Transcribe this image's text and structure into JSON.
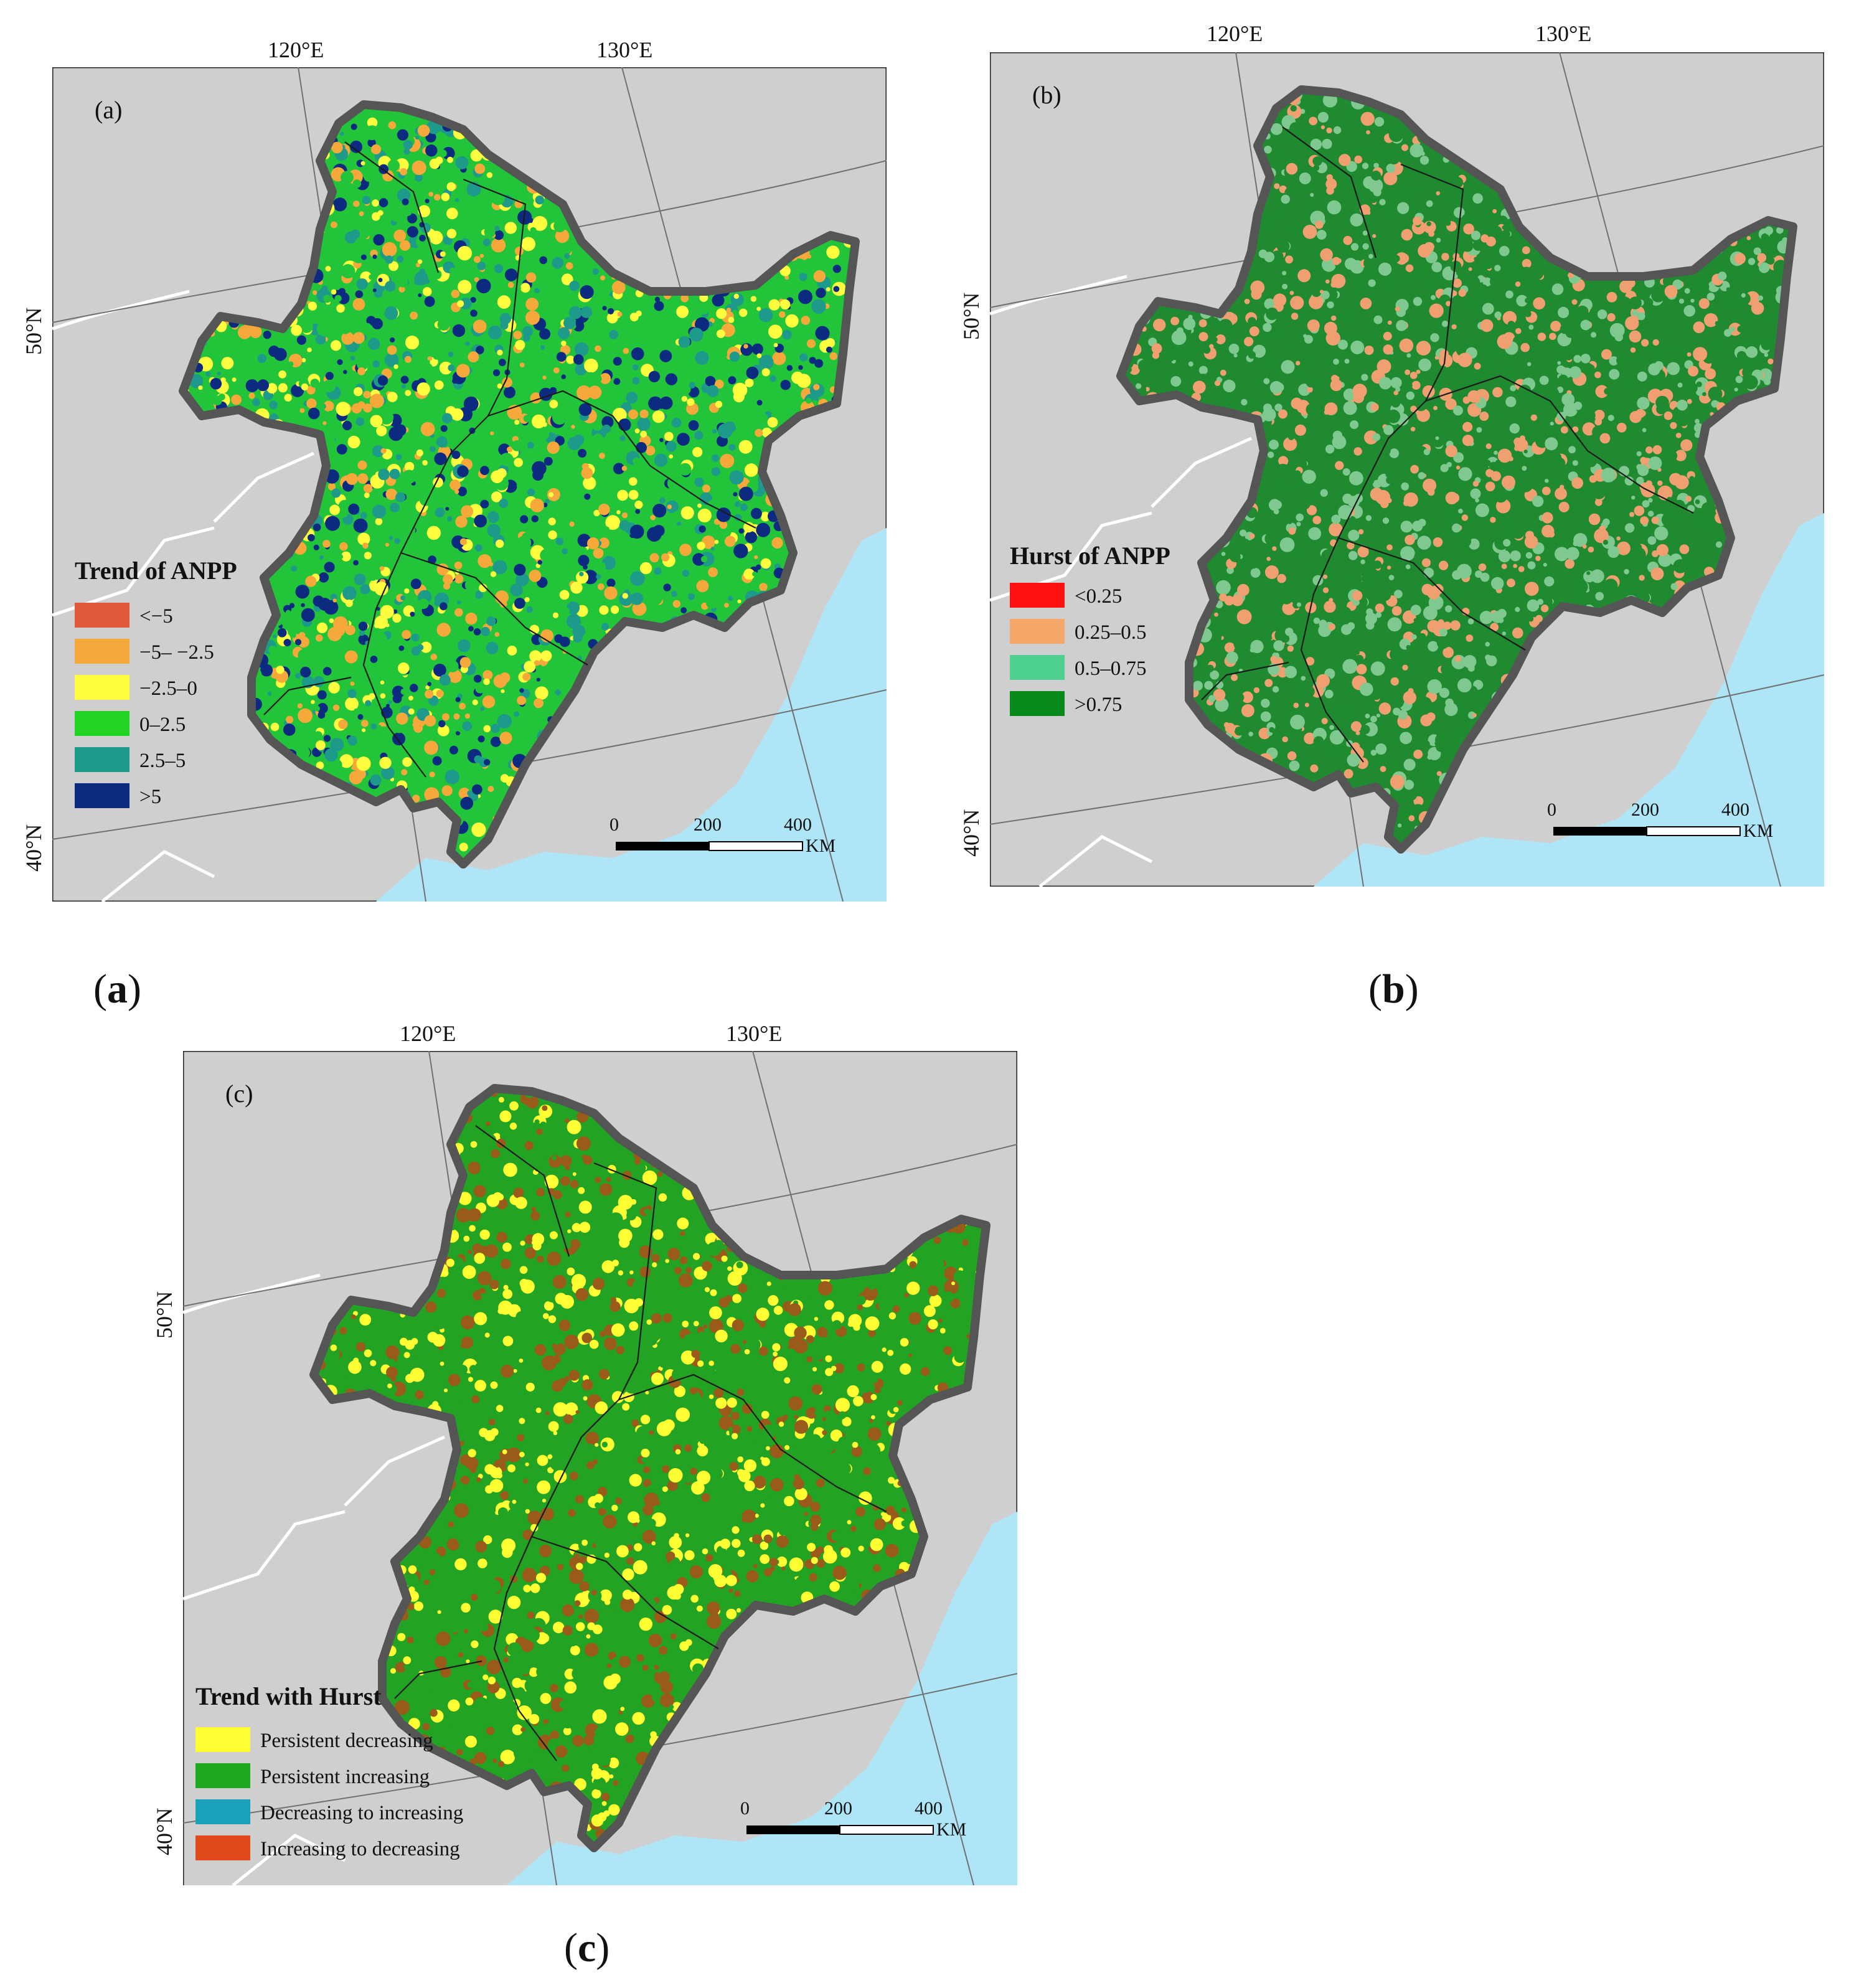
{
  "coordinates": {
    "lon_120": "120°E",
    "lon_130": "130°E",
    "lat_50": "50°N",
    "lat_40": "40°N"
  },
  "scale_bar": {
    "tick_0": "0",
    "tick_200": "200",
    "tick_400": "400",
    "unit": "KM"
  },
  "panels": [
    {
      "id": "a",
      "tag": "(a)",
      "caption_open": "(",
      "caption_letter": "a",
      "caption_close": ")",
      "legend_title": "Trend of ANPP",
      "legend": [
        {
          "label": "<−5",
          "color": "#e05a3a"
        },
        {
          "label": "−5– −2.5",
          "color": "#f6a83a"
        },
        {
          "label": "−2.5–0",
          "color": "#ffff40"
        },
        {
          "label": "0–2.5",
          "color": "#22d422"
        },
        {
          "label": "2.5–5",
          "color": "#1e9a8a"
        },
        {
          "label": ">5",
          "color": "#0b2a80"
        }
      ],
      "fill_colors": [
        "#22c43a",
        "#1e9a8a",
        "#0b2a80",
        "#ffff40",
        "#f6a83a"
      ]
    },
    {
      "id": "b",
      "tag": "(b)",
      "caption_open": "(",
      "caption_letter": "b",
      "caption_close": ")",
      "legend_title": "Hurst of ANPP",
      "legend": [
        {
          "label": "<0.25",
          "color": "#ff1010"
        },
        {
          "label": "0.25–0.5",
          "color": "#f6a86a"
        },
        {
          "label": "0.5–0.75",
          "color": "#4ed08e"
        },
        {
          "label": ">0.75",
          "color": "#078a1a"
        }
      ],
      "fill_colors": [
        "#1f8a30",
        "#7fc890",
        "#f0a070"
      ]
    },
    {
      "id": "c",
      "tag": "(c)",
      "caption_open": "(",
      "caption_letter": "c",
      "caption_close": ")",
      "legend_title": "Trend with Hurst",
      "legend": [
        {
          "label": "Persistent decreasing",
          "color": "#ffff33"
        },
        {
          "label": "Persistent increasing",
          "color": "#1eaa1e"
        },
        {
          "label": "Decreasing to increasing",
          "color": "#1aa0b8"
        },
        {
          "label": "Increasing to decreasing",
          "color": "#e04a1a"
        }
      ],
      "fill_colors": [
        "#22a324",
        "#ffff33",
        "#9a5a1a"
      ]
    }
  ]
}
